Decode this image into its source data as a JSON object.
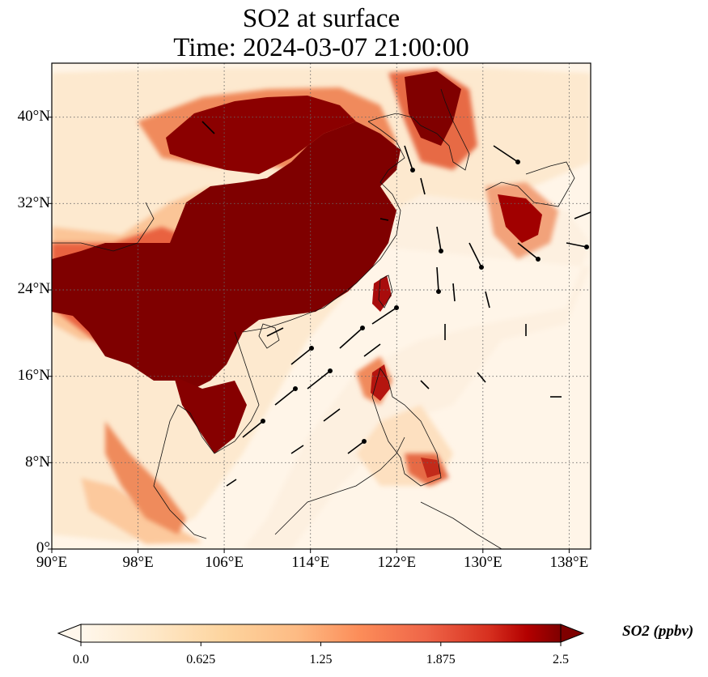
{
  "title": {
    "line1": "SO2 at surface",
    "line2": "Time: 2024-03-07 21:00:00"
  },
  "map": {
    "projection": "PlateCarree",
    "lon_range": [
      90,
      140
    ],
    "lat_range": [
      0,
      45
    ],
    "gridlines": "dotted",
    "wind_vectors": true
  },
  "axes": {
    "x_ticks": [
      "90°E",
      "98°E",
      "106°E",
      "114°E",
      "122°E",
      "130°E",
      "138°E"
    ],
    "y_ticks": [
      "0°",
      "8°N",
      "16°N",
      "24°N",
      "32°N",
      "40°N"
    ]
  },
  "colorbar": {
    "label": "SO2 (ppbv)",
    "ticks": [
      "0.0",
      "0.625",
      "1.25",
      "1.875",
      "2.5"
    ],
    "range": [
      0,
      2.5
    ],
    "colormap": "OrRd",
    "extend": "both"
  },
  "colors": {
    "low": "#fff7ec",
    "mid": "#fc8d59",
    "high": "#7f0000"
  }
}
